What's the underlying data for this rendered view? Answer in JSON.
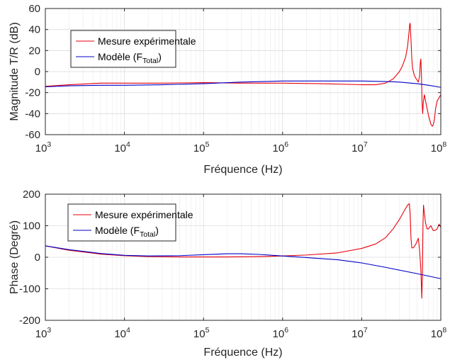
{
  "chart_data": [
    {
      "type": "line",
      "xlabel": "Fréquence (Hz)",
      "ylabel": "Magnitude T/R (dB)",
      "xscale": "log",
      "xlim": [
        1000,
        100000000
      ],
      "ylim": [
        -60,
        60
      ],
      "x_ticks": [
        {
          "base": "10",
          "exp": "3"
        },
        {
          "base": "10",
          "exp": "4"
        },
        {
          "base": "10",
          "exp": "5"
        },
        {
          "base": "10",
          "exp": "6"
        },
        {
          "base": "10",
          "exp": "7"
        },
        {
          "base": "10",
          "exp": "8"
        }
      ],
      "y_ticks": [
        "-60",
        "-40",
        "-20",
        "0",
        "20",
        "40",
        "60"
      ],
      "grid": true,
      "legend": {
        "placement": "top-left",
        "entries": [
          {
            "text": "Mesure expérimentale",
            "sub": "",
            "after": ""
          },
          {
            "text": "Modèle (F",
            "sub": "Total",
            "after": ")"
          }
        ]
      },
      "series": [
        {
          "name": "Mesure expérimentale",
          "color": "#e8000b",
          "x": [
            1000,
            2000,
            5000,
            10000,
            30000,
            100000,
            300000,
            1000000,
            3000000,
            10000000,
            15000000,
            20000000,
            25000000,
            30000000,
            33000000,
            36000000,
            38000000,
            39500000,
            40500000,
            41000000,
            42000000,
            43000000,
            44000000,
            46000000,
            48000000,
            50000000,
            52000000,
            54000000,
            55000000,
            56000000,
            57000000,
            58000000,
            59000000,
            60000000,
            62000000,
            65000000,
            70000000,
            75000000,
            78000000,
            80000000,
            83000000,
            86000000,
            90000000,
            95000000,
            100000000
          ],
          "y": [
            -14,
            -12.5,
            -11,
            -11,
            -11,
            -10.5,
            -11,
            -11,
            -11.5,
            -12.5,
            -12.5,
            -11,
            -7,
            0,
            6,
            14,
            24,
            36,
            45,
            46,
            30,
            12,
            3,
            -3,
            -6,
            -8,
            -10,
            -4,
            8,
            12,
            -5,
            -30,
            -40,
            -30,
            -22,
            -30,
            -42,
            -50,
            -52,
            -51,
            -46,
            -35,
            -28,
            -25,
            -22
          ]
        },
        {
          "name": "Modèle (FTotal)",
          "color": "#0000c8",
          "x": [
            1000,
            2000,
            5000,
            10000,
            30000,
            100000,
            300000,
            1000000,
            3000000,
            10000000,
            20000000,
            30000000,
            50000000,
            70000000,
            100000000
          ],
          "y": [
            -14.5,
            -13.5,
            -13,
            -13,
            -12.5,
            -11.5,
            -10,
            -9,
            -9,
            -9,
            -9.5,
            -10,
            -11.5,
            -13,
            -15
          ]
        }
      ]
    },
    {
      "type": "line",
      "xlabel": "Fréquence (Hz)",
      "ylabel": "Phase (Degré)",
      "xscale": "log",
      "xlim": [
        1000,
        100000000
      ],
      "ylim": [
        -200,
        200
      ],
      "x_ticks": [
        {
          "base": "10",
          "exp": "3"
        },
        {
          "base": "10",
          "exp": "4"
        },
        {
          "base": "10",
          "exp": "5"
        },
        {
          "base": "10",
          "exp": "6"
        },
        {
          "base": "10",
          "exp": "7"
        },
        {
          "base": "10",
          "exp": "8"
        }
      ],
      "y_ticks": [
        "-200",
        "-100",
        "0",
        "100",
        "200"
      ],
      "grid": true,
      "legend": {
        "placement": "top-left",
        "entries": [
          {
            "text": "Mesure expérimentale",
            "sub": "",
            "after": ""
          },
          {
            "text": "Modèle (F",
            "sub": "Total",
            "after": ")"
          }
        ]
      },
      "series": [
        {
          "name": "Mesure expérimentale",
          "color": "#e8000b",
          "x": [
            1000,
            2000,
            5000,
            10000,
            20000,
            50000,
            100000,
            200000,
            500000,
            1000000,
            2000000,
            5000000,
            10000000,
            15000000,
            20000000,
            25000000,
            30000000,
            35000000,
            38000000,
            40000000,
            41000000,
            42000000,
            43000000,
            45000000,
            48000000,
            50000000,
            52000000,
            54000000,
            56000000,
            57500000,
            58500000,
            59500000,
            60500000,
            62000000,
            64000000,
            67000000,
            70000000,
            72000000,
            75000000,
            80000000,
            85000000,
            90000000,
            95000000,
            100000000
          ],
          "y": [
            36,
            22,
            10,
            5,
            2,
            1,
            1,
            1,
            2,
            4,
            7,
            14,
            28,
            42,
            62,
            90,
            120,
            150,
            165,
            170,
            140,
            60,
            30,
            30,
            40,
            50,
            60,
            20,
            -40,
            -130,
            -60,
            100,
            165,
            140,
            110,
            90,
            90,
            95,
            100,
            85,
            85,
            90,
            105,
            95
          ]
        },
        {
          "name": "Modèle (FTotal)",
          "color": "#0000c8",
          "x": [
            1000,
            2000,
            5000,
            10000,
            20000,
            50000,
            100000,
            200000,
            300000,
            500000,
            1000000,
            2000000,
            5000000,
            10000000,
            20000000,
            50000000,
            100000000
          ],
          "y": [
            36,
            24,
            12,
            6,
            4,
            5,
            8,
            11,
            11,
            9,
            4,
            -1,
            -8,
            -18,
            -32,
            -52,
            -68
          ]
        }
      ]
    }
  ]
}
